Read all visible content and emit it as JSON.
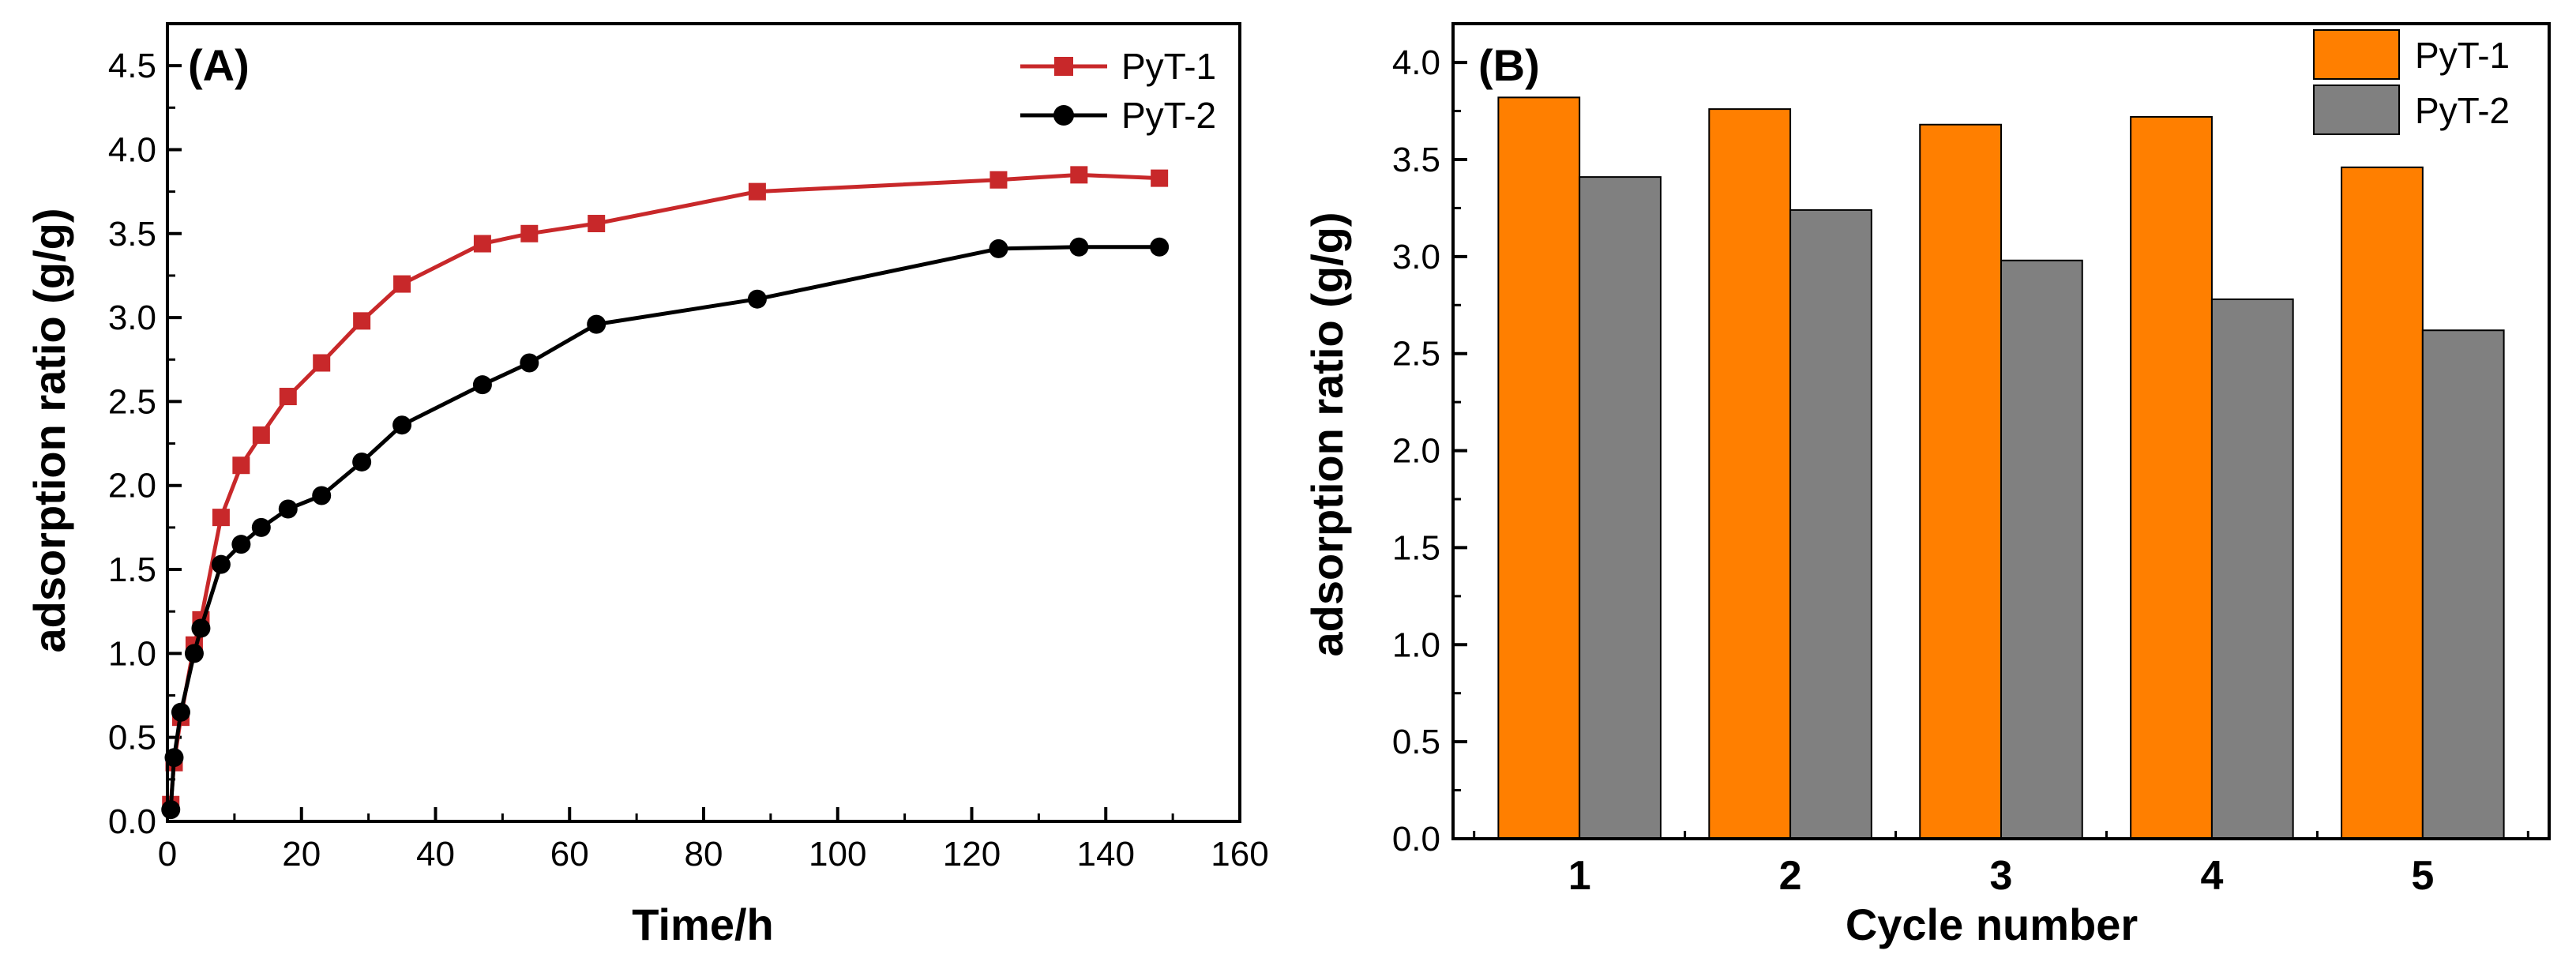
{
  "chart_data": [
    {
      "id": "A",
      "type": "line",
      "panel_label": "(A)",
      "xlabel": "Time/h",
      "ylabel": "adsorption ratio (g/g)",
      "xlim": [
        0,
        160
      ],
      "ylim": [
        0,
        4.75
      ],
      "xticks": [
        0,
        20,
        40,
        60,
        80,
        100,
        120,
        140,
        160
      ],
      "yticks": [
        0.0,
        0.5,
        1.0,
        1.5,
        2.0,
        2.5,
        3.0,
        3.5,
        4.0,
        4.5
      ],
      "x_tick_labels": [
        "0",
        "20",
        "40",
        "60",
        "80",
        "100",
        "120",
        "140",
        "160"
      ],
      "y_tick_labels": [
        "0.0",
        "0.5",
        "1.0",
        "1.5",
        "2.0",
        "2.5",
        "3.0",
        "3.5",
        "4.0",
        "4.5"
      ],
      "legend_position": "top-right",
      "series": [
        {
          "name": "PyT-1",
          "color": "#c8282a",
          "marker": "square",
          "x": [
            0.5,
            1,
            2,
            4,
            5,
            8,
            11,
            14,
            18,
            23,
            29,
            35,
            47,
            54,
            64,
            88,
            124,
            136,
            148
          ],
          "y": [
            0.1,
            0.35,
            0.62,
            1.05,
            1.2,
            1.81,
            2.12,
            2.3,
            2.53,
            2.73,
            2.98,
            3.2,
            3.44,
            3.5,
            3.56,
            3.75,
            3.82,
            3.85,
            3.83
          ]
        },
        {
          "name": "PyT-2",
          "color": "#000000",
          "marker": "circle",
          "x": [
            0.5,
            1,
            2,
            4,
            5,
            8,
            11,
            14,
            18,
            23,
            29,
            35,
            47,
            54,
            64,
            88,
            124,
            136,
            148
          ],
          "y": [
            0.07,
            0.38,
            0.65,
            1.0,
            1.15,
            1.53,
            1.65,
            1.75,
            1.86,
            1.94,
            2.14,
            2.36,
            2.6,
            2.73,
            2.96,
            3.11,
            3.41,
            3.42,
            3.42
          ]
        }
      ]
    },
    {
      "id": "B",
      "type": "bar",
      "panel_label": "(B)",
      "xlabel": "Cycle number",
      "ylabel": "adsorption ratio (g/g)",
      "ylim": [
        0,
        4.2
      ],
      "yticks": [
        0.0,
        0.5,
        1.0,
        1.5,
        2.0,
        2.5,
        3.0,
        3.5,
        4.0
      ],
      "y_tick_labels": [
        "0.0",
        "0.5",
        "1.0",
        "1.5",
        "2.0",
        "2.5",
        "3.0",
        "3.5",
        "4.0"
      ],
      "categories": [
        "1",
        "2",
        "3",
        "4",
        "5"
      ],
      "legend_position": "top-right",
      "series": [
        {
          "name": "PyT-1",
          "color": "#ff7f00",
          "values": [
            3.82,
            3.76,
            3.68,
            3.72,
            3.46
          ]
        },
        {
          "name": "PyT-2",
          "color": "#808080",
          "values": [
            3.41,
            3.24,
            2.98,
            2.78,
            2.62
          ]
        }
      ]
    }
  ]
}
